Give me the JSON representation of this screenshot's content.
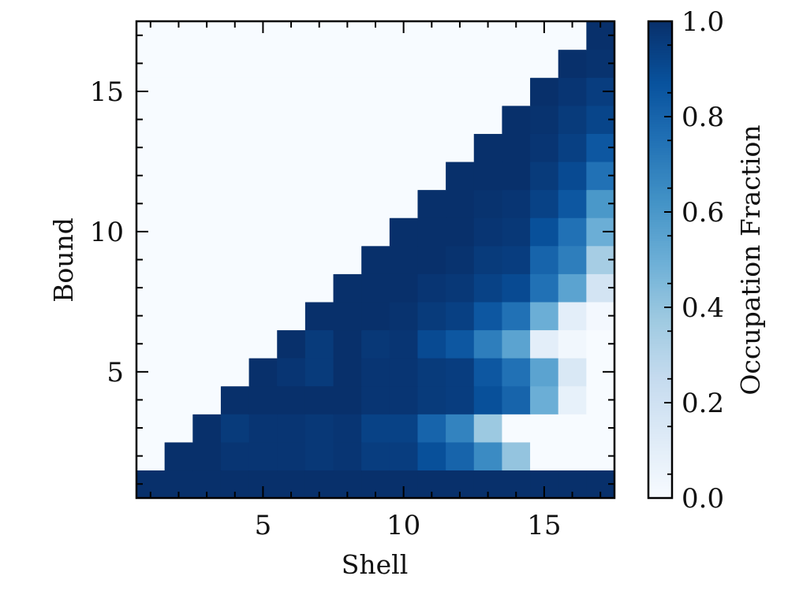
{
  "chart_data": {
    "type": "heatmap",
    "xlabel": "Shell",
    "ylabel": "Bound",
    "x_range": [
      0.5,
      17.5
    ],
    "y_range": [
      0.5,
      17.5
    ],
    "x_ticks": [
      5,
      10,
      15
    ],
    "y_ticks": [
      5,
      10,
      15
    ],
    "colorbar": {
      "label": "Occupation Fraction",
      "range": [
        0.0,
        1.0
      ],
      "ticks": [
        "0.0",
        "0.2",
        "0.4",
        "0.6",
        "0.8",
        "1.0"
      ],
      "colormap": "Blues"
    },
    "grid": false,
    "matrix_note": "rows are Bound 1..17 (bottom to top), columns are Shell 1..17 (left to right); 0 = empty region above diagonal",
    "values": [
      [
        1.0,
        1.0,
        1.0,
        1.0,
        1.0,
        1.0,
        1.0,
        1.0,
        1.0,
        1.0,
        1.0,
        1.0,
        1.0,
        1.0,
        1.0,
        1.0,
        1.0
      ],
      [
        0.0,
        1.0,
        1.0,
        0.98,
        0.98,
        0.98,
        0.97,
        0.98,
        0.95,
        0.95,
        0.88,
        0.8,
        0.65,
        0.4,
        0.0,
        0.0,
        0.0
      ],
      [
        0.0,
        0.0,
        1.0,
        0.96,
        0.98,
        0.98,
        0.97,
        0.98,
        0.93,
        0.93,
        0.8,
        0.68,
        0.38,
        0.0,
        0.0,
        0.0,
        0.0
      ],
      [
        0.0,
        0.0,
        0.0,
        1.0,
        1.0,
        1.0,
        1.0,
        1.0,
        0.98,
        0.98,
        0.96,
        0.95,
        0.88,
        0.8,
        0.5,
        0.08,
        0.0
      ],
      [
        0.0,
        0.0,
        0.0,
        0.0,
        1.0,
        0.98,
        0.96,
        1.0,
        0.98,
        0.98,
        0.96,
        0.95,
        0.85,
        0.75,
        0.55,
        0.15,
        0.0
      ],
      [
        0.0,
        0.0,
        0.0,
        0.0,
        0.0,
        1.0,
        0.96,
        1.0,
        0.97,
        0.98,
        0.9,
        0.85,
        0.7,
        0.55,
        0.1,
        0.03,
        0.0
      ],
      [
        0.0,
        0.0,
        0.0,
        0.0,
        0.0,
        0.0,
        1.0,
        1.0,
        1.0,
        0.99,
        0.96,
        0.94,
        0.85,
        0.75,
        0.5,
        0.1,
        0.02
      ],
      [
        0.0,
        0.0,
        0.0,
        0.0,
        0.0,
        0.0,
        0.0,
        1.0,
        1.0,
        1.0,
        0.98,
        0.97,
        0.93,
        0.9,
        0.75,
        0.55,
        0.18
      ],
      [
        0.0,
        0.0,
        0.0,
        0.0,
        0.0,
        0.0,
        0.0,
        0.0,
        1.0,
        1.0,
        1.0,
        0.99,
        0.96,
        0.95,
        0.8,
        0.7,
        0.35
      ],
      [
        0.0,
        0.0,
        0.0,
        0.0,
        0.0,
        0.0,
        0.0,
        0.0,
        0.0,
        1.0,
        1.0,
        1.0,
        0.98,
        0.97,
        0.88,
        0.75,
        0.5
      ],
      [
        0.0,
        0.0,
        0.0,
        0.0,
        0.0,
        0.0,
        0.0,
        0.0,
        0.0,
        0.0,
        1.0,
        1.0,
        0.99,
        0.98,
        0.93,
        0.85,
        0.6
      ],
      [
        0.0,
        0.0,
        0.0,
        0.0,
        0.0,
        0.0,
        0.0,
        0.0,
        0.0,
        0.0,
        0.0,
        1.0,
        1.0,
        1.0,
        0.96,
        0.9,
        0.75
      ],
      [
        0.0,
        0.0,
        0.0,
        0.0,
        0.0,
        0.0,
        0.0,
        0.0,
        0.0,
        0.0,
        0.0,
        0.0,
        1.0,
        1.0,
        0.98,
        0.94,
        0.85
      ],
      [
        0.0,
        0.0,
        0.0,
        0.0,
        0.0,
        0.0,
        0.0,
        0.0,
        0.0,
        0.0,
        0.0,
        0.0,
        0.0,
        1.0,
        0.99,
        0.96,
        0.92
      ],
      [
        0.0,
        0.0,
        0.0,
        0.0,
        0.0,
        0.0,
        0.0,
        0.0,
        0.0,
        0.0,
        0.0,
        0.0,
        0.0,
        0.0,
        1.0,
        0.98,
        0.95
      ],
      [
        0.0,
        0.0,
        0.0,
        0.0,
        0.0,
        0.0,
        0.0,
        0.0,
        0.0,
        0.0,
        0.0,
        0.0,
        0.0,
        0.0,
        0.0,
        1.0,
        0.99
      ],
      [
        0.0,
        0.0,
        0.0,
        0.0,
        0.0,
        0.0,
        0.0,
        0.0,
        0.0,
        0.0,
        0.0,
        0.0,
        0.0,
        0.0,
        0.0,
        0.0,
        1.0
      ]
    ]
  }
}
